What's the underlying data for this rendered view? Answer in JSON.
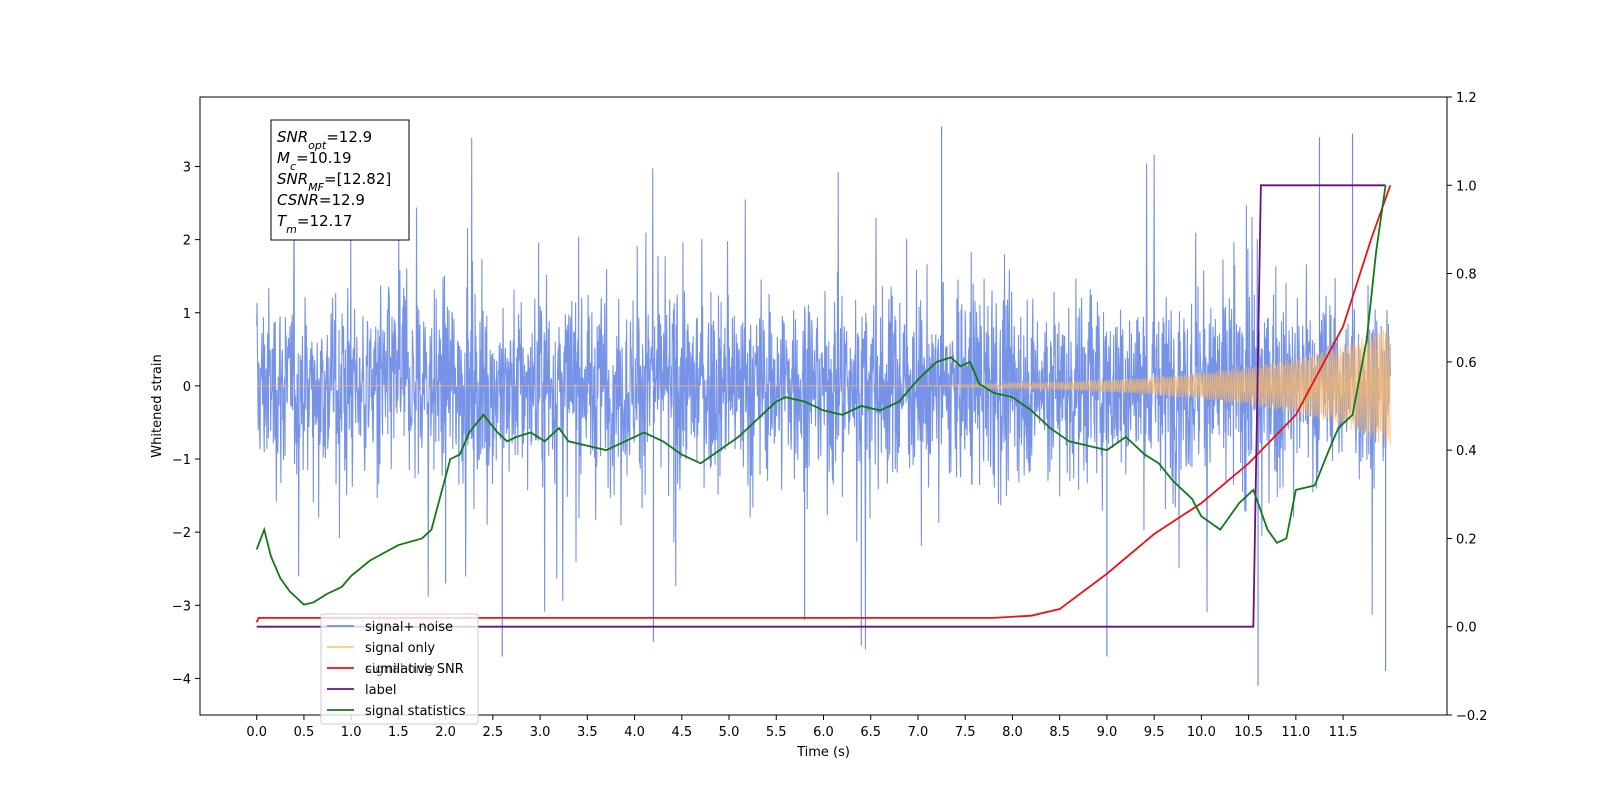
{
  "chart_data": {
    "type": "line",
    "title": "",
    "xlabel": "Time (s)",
    "ylabel": "Whitened strain",
    "y2label": "",
    "xlim": [
      -0.6,
      12.6
    ],
    "ylim": [
      -4.5,
      3.95
    ],
    "y2lim": [
      -0.2,
      1.2
    ],
    "x_ticks": [
      "0.0",
      "0.5",
      "1.0",
      "1.5",
      "2.0",
      "2.5",
      "3.0",
      "3.5",
      "4.0",
      "4.5",
      "5.0",
      "5.5",
      "6.0",
      "6.5",
      "7.0",
      "7.5",
      "8.0",
      "8.5",
      "9.0",
      "9.5",
      "10.0",
      "10.5",
      "11.0",
      "11.5"
    ],
    "y_ticks": [
      "3",
      "2",
      "1",
      "0",
      "−1",
      "−2",
      "−3",
      "−4"
    ],
    "y2_ticks": [
      "1.2",
      "1.0",
      "0.8",
      "0.6",
      "0.4",
      "0.2",
      "0.0",
      "−0.2"
    ],
    "legend_position": "lower-left",
    "grid": false,
    "annotation": {
      "lines": [
        {
          "name": "SNR",
          "sub": "opt",
          "value": "=12.9"
        },
        {
          "name": "M",
          "sub": "c",
          "value": "=10.19"
        },
        {
          "name": "SNR",
          "sub": "MF",
          "value": "=[12.82]"
        },
        {
          "name": "CSNR",
          "sub": "",
          "value": "=12.9"
        },
        {
          "name": "T",
          "sub": "m",
          "value": "=12.17"
        }
      ]
    },
    "series": [
      {
        "name": "signal+ noise",
        "axis": "left",
        "color": "#6f8de6",
        "style": "noise band",
        "x_range": [
          0.0,
          12.0
        ],
        "typical_range": [
          -1.6,
          1.6
        ],
        "y_min": -4.1,
        "y_max": 3.55,
        "spikes": [
          [
            2.0,
            -2.7
          ],
          [
            2.6,
            -3.7
          ],
          [
            4.2,
            -3.5
          ],
          [
            5.8,
            -3.2
          ],
          [
            6.4,
            -3.55
          ],
          [
            9.0,
            -3.7
          ],
          [
            10.6,
            -4.1
          ],
          [
            11.95,
            -3.9
          ],
          [
            7.25,
            3.55
          ],
          [
            11.25,
            3.4
          ],
          [
            11.6,
            3.45
          ]
        ]
      },
      {
        "name": "signal only",
        "axis": "left",
        "color": "#f7b86b",
        "style": "chirp",
        "x": [
          0.0,
          7.0,
          7.8,
          8.5,
          9.0,
          9.5,
          10.0,
          10.5,
          11.0,
          11.5,
          12.0
        ],
        "amplitude": [
          0.0,
          0.0,
          0.03,
          0.05,
          0.08,
          0.12,
          0.18,
          0.26,
          0.38,
          0.55,
          0.85
        ]
      },
      {
        "name": "cumilative SNR",
        "axis": "right",
        "color": "#ee1111",
        "x": [
          0.0,
          0.02,
          7.8,
          8.2,
          8.5,
          9.0,
          9.5,
          10.0,
          10.5,
          11.0,
          11.5,
          11.8,
          12.0
        ],
        "y": [
          0.01,
          0.02,
          0.02,
          0.025,
          0.04,
          0.12,
          0.21,
          0.28,
          0.37,
          0.48,
          0.68,
          0.88,
          1.0
        ]
      },
      {
        "name": "label",
        "axis": "right",
        "color": "#6a0f80",
        "x": [
          0.0,
          10.55,
          10.63,
          11.95
        ],
        "y": [
          0.0,
          0.0,
          1.0,
          1.0
        ]
      },
      {
        "name": "signal only",
        "axis": "right",
        "color": "#d0d0d0",
        "x": [],
        "y": []
      },
      {
        "name": "signal statistics",
        "axis": "right",
        "color": "#117a11",
        "x": [
          0.0,
          0.08,
          0.15,
          0.25,
          0.35,
          0.5,
          0.6,
          0.75,
          0.9,
          1.0,
          1.2,
          1.5,
          1.75,
          1.85,
          1.95,
          2.05,
          2.15,
          2.25,
          2.4,
          2.55,
          2.65,
          2.75,
          2.9,
          3.05,
          3.2,
          3.3,
          3.5,
          3.7,
          3.9,
          4.1,
          4.3,
          4.5,
          4.7,
          4.9,
          5.1,
          5.3,
          5.5,
          5.6,
          5.8,
          6.0,
          6.2,
          6.4,
          6.6,
          6.8,
          7.0,
          7.2,
          7.35,
          7.45,
          7.55,
          7.65,
          7.8,
          8.0,
          8.2,
          8.4,
          8.6,
          8.8,
          9.0,
          9.2,
          9.4,
          9.55,
          9.7,
          9.9,
          10.0,
          10.2,
          10.4,
          10.55,
          10.7,
          10.8,
          10.9,
          11.0,
          11.2,
          11.35,
          11.45,
          11.6,
          11.75,
          11.85,
          11.95
        ],
        "y": [
          0.175,
          0.22,
          0.16,
          0.11,
          0.08,
          0.05,
          0.055,
          0.075,
          0.09,
          0.115,
          0.15,
          0.185,
          0.2,
          0.22,
          0.3,
          0.38,
          0.39,
          0.44,
          0.48,
          0.44,
          0.42,
          0.43,
          0.44,
          0.42,
          0.45,
          0.42,
          0.41,
          0.4,
          0.42,
          0.44,
          0.42,
          0.39,
          0.37,
          0.4,
          0.43,
          0.47,
          0.51,
          0.52,
          0.51,
          0.49,
          0.48,
          0.5,
          0.49,
          0.51,
          0.56,
          0.6,
          0.61,
          0.59,
          0.6,
          0.55,
          0.53,
          0.52,
          0.49,
          0.45,
          0.42,
          0.41,
          0.4,
          0.43,
          0.39,
          0.37,
          0.33,
          0.29,
          0.25,
          0.22,
          0.28,
          0.31,
          0.22,
          0.19,
          0.2,
          0.31,
          0.32,
          0.4,
          0.45,
          0.48,
          0.65,
          0.85,
          1.0
        ]
      }
    ]
  }
}
